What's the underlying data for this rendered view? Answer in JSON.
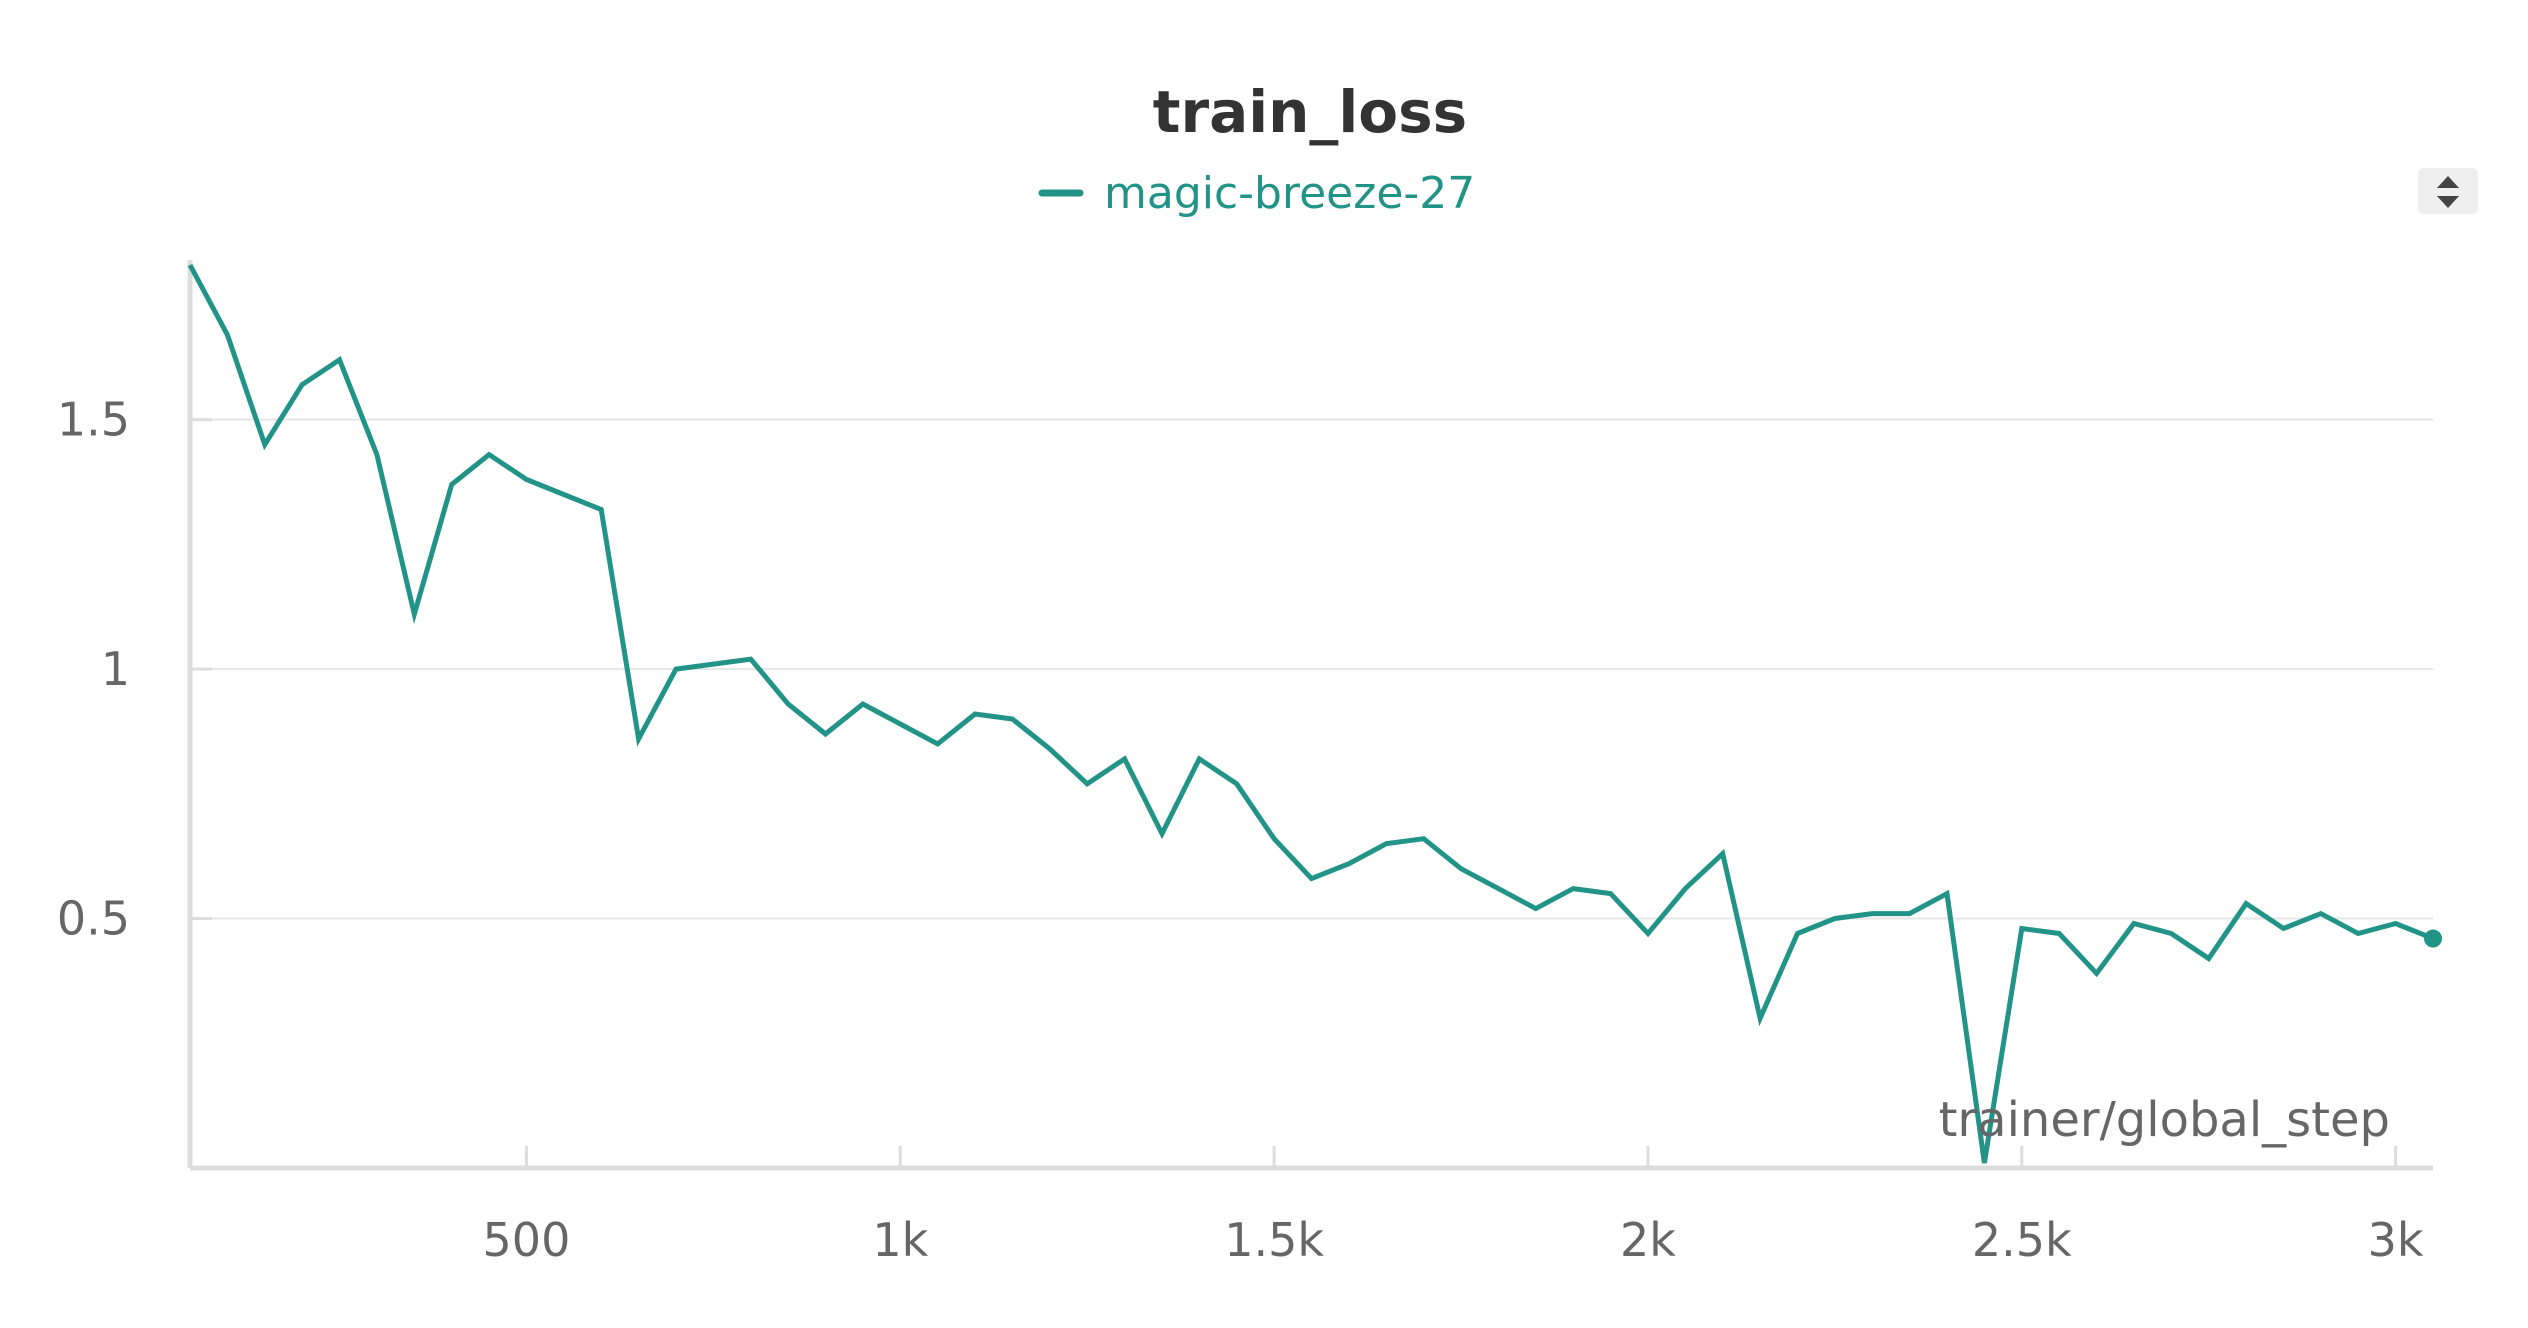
{
  "chart_data": {
    "type": "line",
    "title": "train_loss",
    "xlabel": "trainer/global_step",
    "ylabel": "",
    "xlim": [
      50,
      3050
    ],
    "ylim": [
      0,
      1.82
    ],
    "x_ticks": [
      {
        "value": 500,
        "label": "500"
      },
      {
        "value": 1000,
        "label": "1k"
      },
      {
        "value": 1500,
        "label": "1.5k"
      },
      {
        "value": 2000,
        "label": "2k"
      },
      {
        "value": 2500,
        "label": "2.5k"
      },
      {
        "value": 3000,
        "label": "3k"
      }
    ],
    "y_ticks": [
      {
        "value": 0.5,
        "label": "0.5"
      },
      {
        "value": 1,
        "label": "1"
      },
      {
        "value": 1.5,
        "label": "1.5"
      }
    ],
    "grid": "horizontal",
    "legend": "top-center",
    "series": [
      {
        "name": "magic-breeze-27",
        "color": "#229487",
        "x": [
          50,
          100,
          150,
          200,
          250,
          300,
          350,
          400,
          450,
          500,
          550,
          600,
          650,
          700,
          750,
          800,
          850,
          900,
          950,
          1000,
          1050,
          1100,
          1150,
          1200,
          1250,
          1300,
          1350,
          1400,
          1450,
          1500,
          1550,
          1600,
          1650,
          1700,
          1750,
          1800,
          1850,
          1900,
          1950,
          2000,
          2050,
          2100,
          2150,
          2200,
          2250,
          2300,
          2350,
          2400,
          2450,
          2500,
          2550,
          2600,
          2650,
          2700,
          2750,
          2800,
          2850,
          2900,
          2950,
          3000,
          3050
        ],
        "y": [
          1.81,
          1.67,
          1.45,
          1.57,
          1.62,
          1.43,
          1.11,
          1.37,
          1.43,
          1.38,
          1.35,
          1.32,
          0.86,
          1.0,
          1.01,
          1.02,
          0.93,
          0.87,
          0.93,
          0.89,
          0.85,
          0.91,
          0.9,
          0.84,
          0.77,
          0.82,
          0.67,
          0.82,
          0.77,
          0.66,
          0.58,
          0.61,
          0.65,
          0.66,
          0.6,
          0.56,
          0.52,
          0.56,
          0.55,
          0.47,
          0.56,
          0.63,
          0.3,
          0.47,
          0.5,
          0.51,
          0.51,
          0.55,
          0.01,
          0.48,
          0.47,
          0.39,
          0.49,
          0.47,
          0.42,
          0.53,
          0.48,
          0.51,
          0.47,
          0.49,
          0.46
        ]
      }
    ]
  }
}
